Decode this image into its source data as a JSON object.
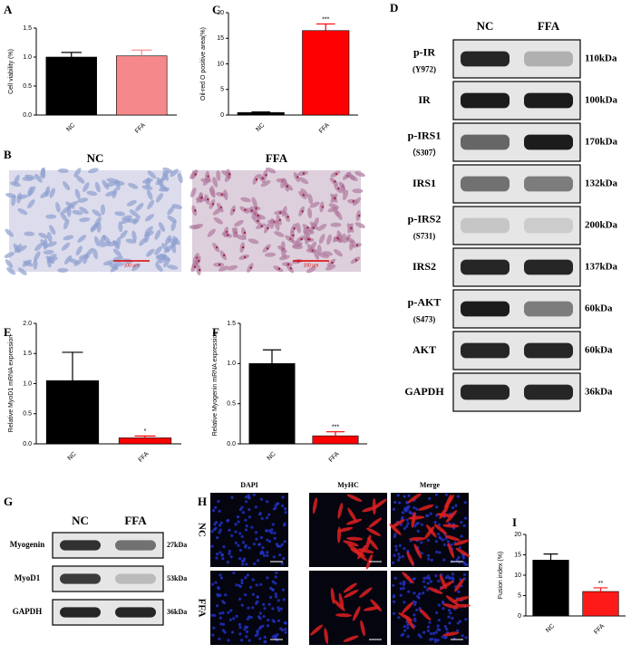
{
  "panel_labels": [
    "A",
    "B",
    "C",
    "D",
    "E",
    "F",
    "G",
    "H",
    "I"
  ],
  "chart_data": [
    {
      "type": "bar",
      "y_label": "Cell viability (%)",
      "categories": [
        "NC",
        "FFA"
      ],
      "values": [
        1.0,
        1.02
      ],
      "errors": [
        0.08,
        0.1
      ],
      "colors": [
        "#000000",
        "#f4888a"
      ],
      "ylim": [
        0,
        1.5
      ],
      "yticks": [
        {
          "value": 0,
          "label": "0.0"
        },
        0.5,
        {
          "value": 1,
          "label": "1.0"
        },
        1.5
      ]
    },
    {
      "type": "bar",
      "y_label": "Oil-red O positive area(%)",
      "categories": [
        "NC",
        "FFA"
      ],
      "values": [
        0.5,
        16.5
      ],
      "errors": [
        0.1,
        1.3
      ],
      "colors": [
        "#000000",
        "#ff0000"
      ],
      "ylim": [
        0,
        20
      ],
      "yticks": [
        0,
        5,
        10,
        15,
        20
      ],
      "annotation": "***"
    },
    {
      "type": "bar",
      "y_label": "Relative MyoD1 mRNA expression",
      "categories": [
        "NC",
        "FFA"
      ],
      "values": [
        1.05,
        0.1
      ],
      "errors": [
        0.47,
        0.03
      ],
      "colors": [
        "#000000",
        "#ff0000"
      ],
      "ylim": [
        0,
        2
      ],
      "yticks": [
        {
          "value": 0,
          "label": "0.0"
        },
        0.5,
        {
          "value": 1,
          "label": "1.0"
        },
        1.5,
        {
          "value": 2,
          "label": "2.0"
        }
      ],
      "annotation": "*"
    },
    {
      "type": "bar",
      "y_label": "Relative Myogenin mRNA expression",
      "categories": [
        "NC",
        "FFA"
      ],
      "values": [
        1.0,
        0.1
      ],
      "errors": [
        0.17,
        0.05
      ],
      "colors": [
        "#000000",
        "#ff0000"
      ],
      "ylim": [
        0,
        1.5
      ],
      "yticks": [
        {
          "value": 0,
          "label": "0.0"
        },
        0.5,
        {
          "value": 1,
          "label": "1.0"
        },
        1.5
      ],
      "annotation": "***"
    },
    {
      "type": "bar",
      "y_label": "Fusion index (%)",
      "categories": [
        "NC",
        "FFA"
      ],
      "values": [
        13.7,
        6.0
      ],
      "errors": [
        1.5,
        0.9
      ],
      "colors": [
        "#000000",
        "#ff1a1a"
      ],
      "ylim": [
        0,
        20
      ],
      "yticks": [
        0,
        5,
        10,
        15,
        20
      ],
      "annotation": "**"
    }
  ],
  "staining": {
    "conditions": [
      "NC",
      "FFA"
    ],
    "scale_bar": "100 μm"
  },
  "western_d": {
    "columns": [
      "NC",
      "FFA"
    ],
    "rows": [
      {
        "label": "p-IR",
        "site": "(Y972)",
        "size": "110kDa"
      },
      {
        "label": "IR",
        "size": "100kDa"
      },
      {
        "label": "p-IRS1",
        "site": "（S307）",
        "size": "170kDa"
      },
      {
        "label": "IRS1",
        "size": "132kDa"
      },
      {
        "label": "p-IRS2",
        "site": "(S731)",
        "size": "200kDa"
      },
      {
        "label": "IRS2",
        "size": "137kDa"
      },
      {
        "label": "p-AKT",
        "site": "(S473)",
        "size": "60kDa"
      },
      {
        "label": "AKT",
        "size": "60kDa"
      },
      {
        "label": "GAPDH",
        "size": "36kDa"
      }
    ]
  },
  "western_g": {
    "columns": [
      "NC",
      "FFA"
    ],
    "rows": [
      {
        "label": "Myogenin",
        "size": "27kDa"
      },
      {
        "label": "MyoD1",
        "size": "53kDa"
      },
      {
        "label": "GAPDH",
        "size": "36kDa"
      }
    ]
  },
  "immunofluorescence": {
    "channels": [
      "DAPI",
      "MyHC",
      "Merge"
    ],
    "conditions": [
      "NC",
      "FFA"
    ]
  }
}
